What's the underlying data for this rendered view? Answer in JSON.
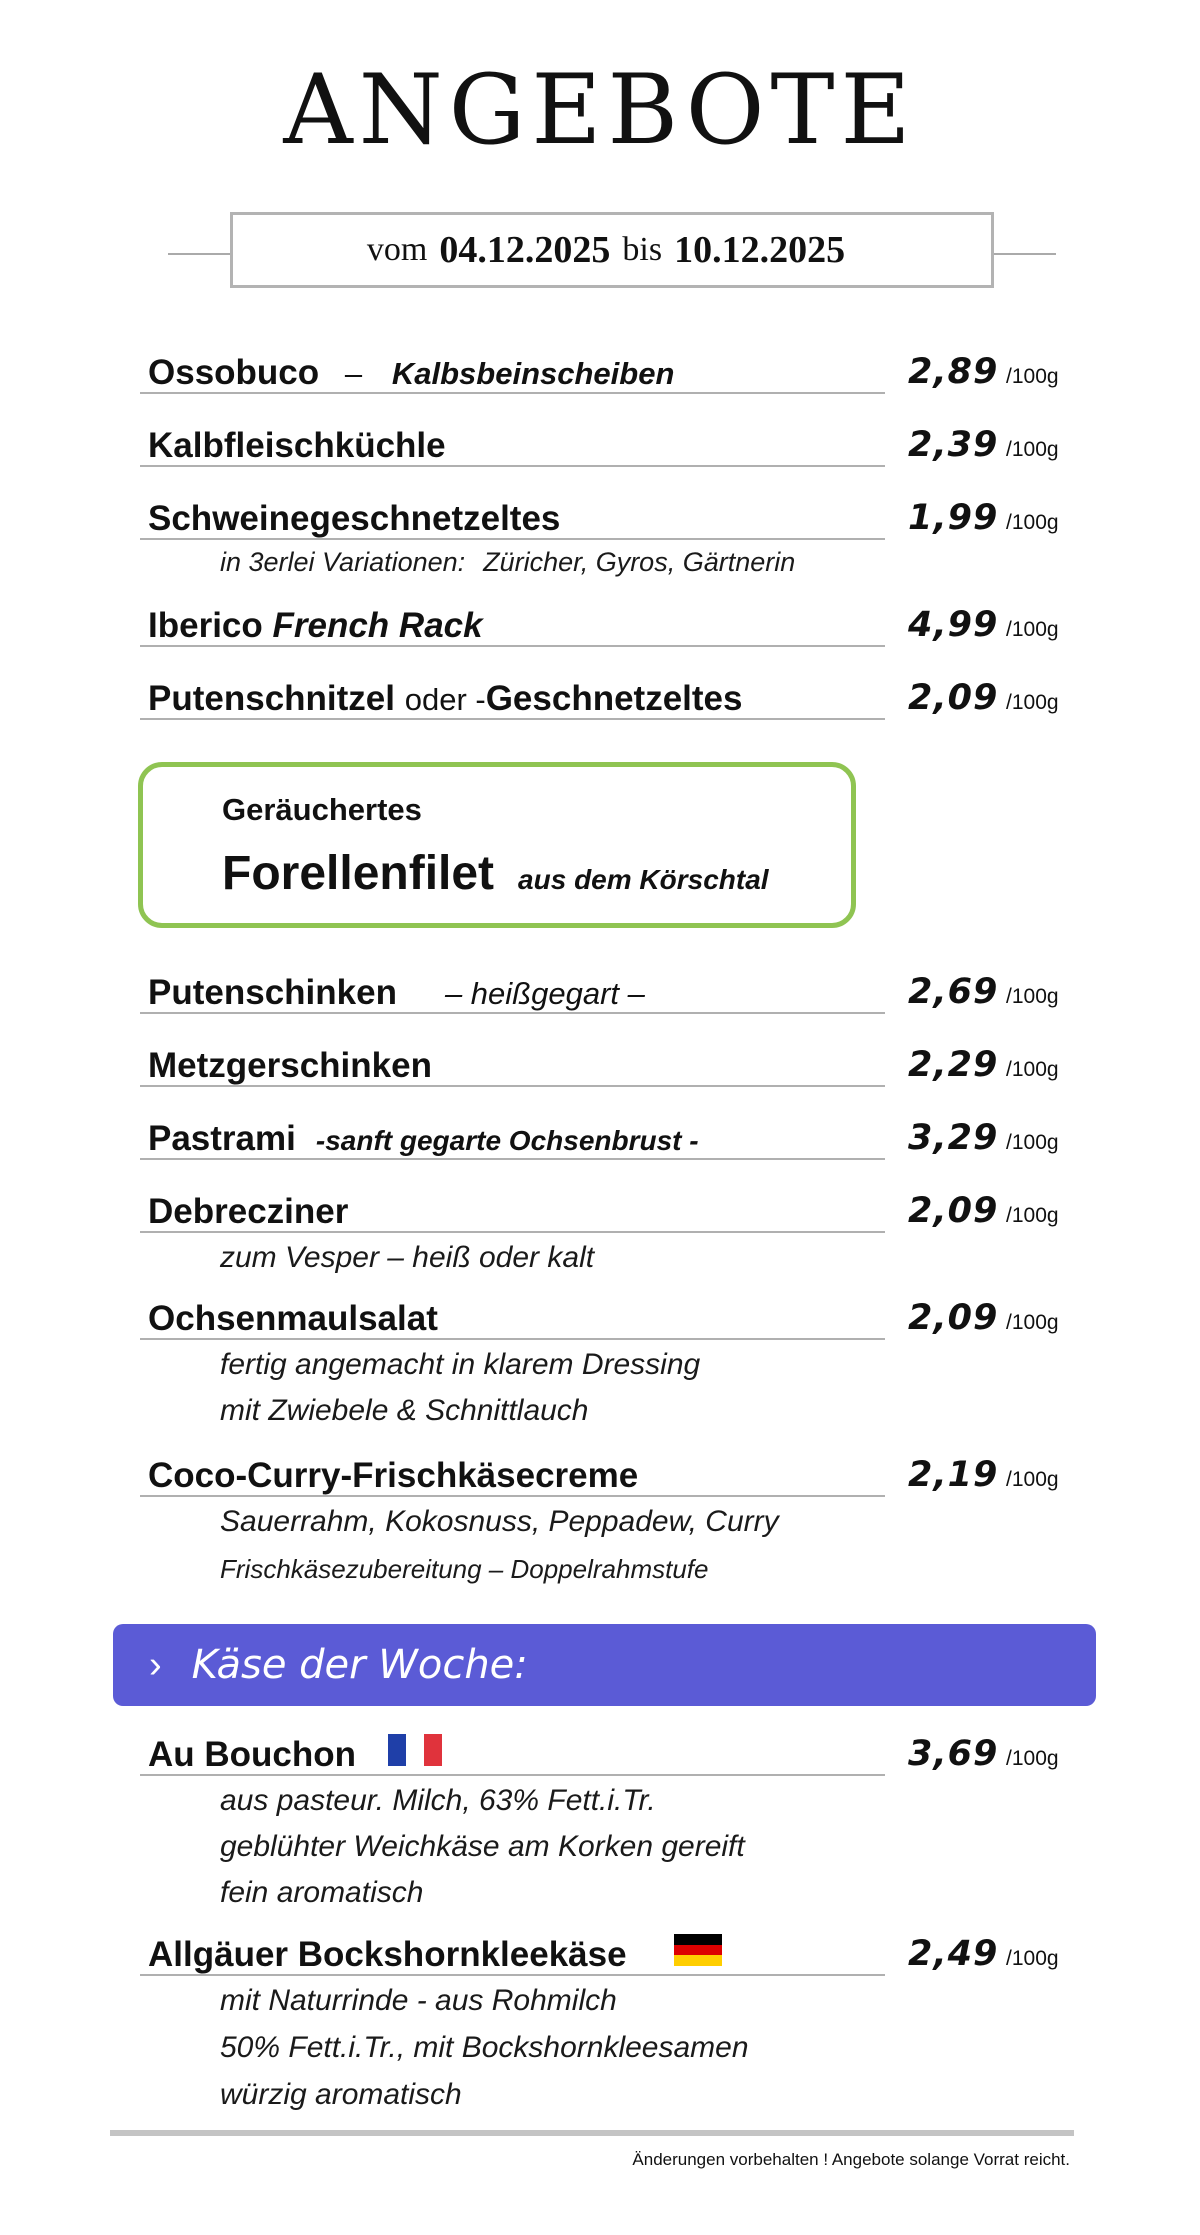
{
  "title": "ANGEBOTE",
  "date": {
    "from_label": "vom",
    "from": "04.12.2025",
    "to_label": "bis",
    "to": "10.12.2025"
  },
  "unit": "/100g",
  "items": [
    {
      "name": "Ossobuco",
      "sep": "–",
      "sub": "Kalbsbeinscheiben",
      "price": "2,89"
    },
    {
      "name": "Kalbfleischküchle",
      "price": "2,39"
    },
    {
      "name": "Schweinegeschnetzeltes",
      "price": "1,99",
      "desc_a": "in 3erlei Variationen:",
      "desc_b": "Züricher, Gyros, Gärtnerin"
    },
    {
      "name": "Iberico",
      "name_ital": "French Rack",
      "price": "4,99"
    },
    {
      "name": "Putenschnitzel",
      "mid": "oder -",
      "name2": "Geschnetzeltes",
      "price": "2,09"
    },
    {
      "name": "Putenschinken",
      "sub": "–  heißgegart –",
      "price": "2,69"
    },
    {
      "name": "Metzgerschinken",
      "price": "2,29"
    },
    {
      "name": "Pastrami",
      "sub": "-sanft gegarte  Ochsenbrust -",
      "price": "3,29"
    },
    {
      "name": "Debrecziner",
      "price": "2,09",
      "desc": "zum Vesper  –  heiß oder kalt"
    },
    {
      "name": "Ochsenmaulsalat",
      "price": "2,09",
      "desc1": "fertig angemacht in klarem Dressing",
      "desc2": "mit Zwiebele  &  Schnittlauch"
    },
    {
      "name": "Coco-Curry-Frischkäsecreme",
      "price": "2,19",
      "desc1": "Sauerrahm, Kokosnuss, Peppadew, Curry",
      "desc2": "Frischkäsezubereitung  – Doppelrahmstufe"
    }
  ],
  "special": {
    "line1": "Geräuchertes",
    "line2": "Forellenfilet",
    "line2_sub": "aus dem Körschtal"
  },
  "banner": {
    "chevron": "›",
    "text": "Käse der Woche:"
  },
  "cheeses": [
    {
      "name": "Au Bouchon",
      "flag": "france-flag",
      "price": "3,69",
      "desc1": "aus pasteur. Milch, 63% Fett.i.Tr.",
      "desc2": "geblühter Weichkäse am Korken gereift",
      "desc3": "fein aromatisch"
    },
    {
      "name": "Allgäuer Bockshornkleekäse",
      "flag": "germany-flag",
      "price": "2,49",
      "desc1": "mit Naturrinde  -  aus Rohmilch",
      "desc2": "50% Fett.i.Tr., mit Bockshornkleesamen",
      "desc3": "würzig aromatisch"
    }
  ],
  "colors": {
    "green": "#8fc452",
    "banner": "#5b5bd6",
    "fr_blue": "#1f3fa8",
    "fr_red": "#e0333c",
    "de_black": "#000000",
    "de_red": "#dd0000",
    "de_gold": "#ffce00"
  },
  "footer": "Änderungen vorbehalten ! Angebote solange Vorrat reicht."
}
